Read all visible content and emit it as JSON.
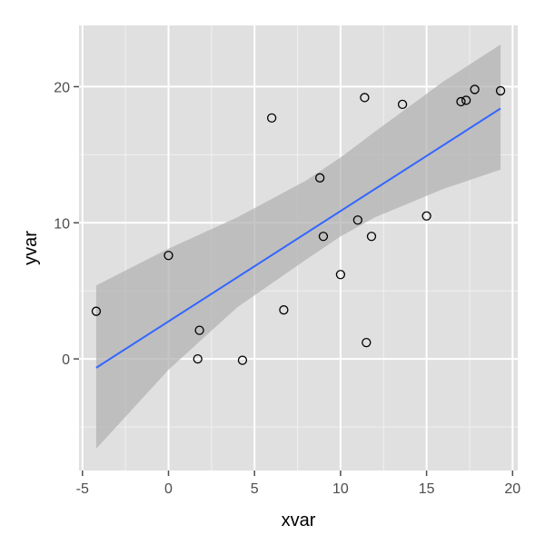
{
  "chart_data": {
    "type": "scatter",
    "xlabel": "xvar",
    "ylabel": "yvar",
    "xlim": [
      -5.2,
      20.3
    ],
    "ylim": [
      -8.2,
      24.5
    ],
    "x_ticks": [
      -5,
      0,
      5,
      10,
      15,
      20
    ],
    "y_ticks": [
      0,
      10,
      20
    ],
    "x_tick_labels": [
      "-5",
      "0",
      "5",
      "10",
      "15",
      "20"
    ],
    "y_tick_labels": [
      "0",
      "10",
      "20"
    ],
    "grid": true,
    "points": [
      {
        "x": -4.2,
        "y": 3.5
      },
      {
        "x": 0.0,
        "y": 7.6
      },
      {
        "x": 1.8,
        "y": 2.1
      },
      {
        "x": 1.7,
        "y": 0.0
      },
      {
        "x": 4.3,
        "y": -0.1
      },
      {
        "x": 6.0,
        "y": 17.7
      },
      {
        "x": 6.7,
        "y": 3.6
      },
      {
        "x": 8.8,
        "y": 13.3
      },
      {
        "x": 9.0,
        "y": 9.0
      },
      {
        "x": 10.0,
        "y": 6.2
      },
      {
        "x": 11.0,
        "y": 10.2
      },
      {
        "x": 11.4,
        "y": 19.2
      },
      {
        "x": 11.5,
        "y": 1.2
      },
      {
        "x": 11.8,
        "y": 9.0
      },
      {
        "x": 13.6,
        "y": 18.7
      },
      {
        "x": 15.0,
        "y": 10.5
      },
      {
        "x": 17.0,
        "y": 18.9
      },
      {
        "x": 17.3,
        "y": 19.0
      },
      {
        "x": 17.8,
        "y": 19.8
      },
      {
        "x": 19.3,
        "y": 19.7
      }
    ],
    "regression": {
      "method": "lm",
      "x_start": -4.2,
      "y_start": -0.65,
      "x_end": 19.3,
      "y_end": 18.4
    },
    "confidence_band": [
      {
        "x": -4.2,
        "lower": -6.6,
        "upper": 5.4
      },
      {
        "x": 0.0,
        "lower": -0.8,
        "upper": 8.1
      },
      {
        "x": 4.0,
        "lower": 3.8,
        "upper": 10.4
      },
      {
        "x": 8.0,
        "lower": 7.3,
        "upper": 13.1
      },
      {
        "x": 10.0,
        "lower": 9.0,
        "upper": 14.8
      },
      {
        "x": 12.0,
        "lower": 10.4,
        "upper": 16.7
      },
      {
        "x": 16.0,
        "lower": 12.5,
        "upper": 20.4
      },
      {
        "x": 19.3,
        "lower": 13.9,
        "upper": 23.1
      }
    ],
    "colors": {
      "panel_background": "#e0e0e0",
      "grid_major": "#ffffff",
      "grid_minor": "#f0f0f0",
      "band_fill": "#b3b3b3",
      "line": "#3366ff",
      "point_stroke": "#000000",
      "tick": "#4d4d4d"
    }
  }
}
